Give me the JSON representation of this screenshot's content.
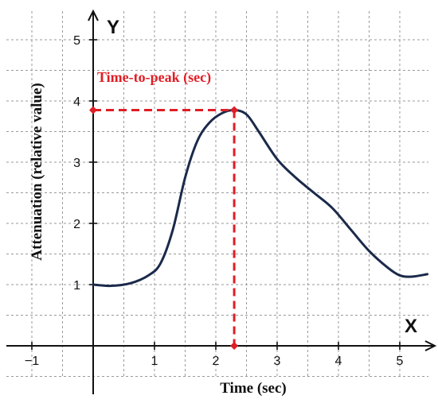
{
  "chart_data": {
    "type": "line",
    "xlabel": "Time (sec)",
    "ylabel": "Attenuation (relative value)",
    "x_axis_letter": "X",
    "y_axis_letter": "Y",
    "xlim": [
      -1.5,
      5.5
    ],
    "ylim": [
      -0.8,
      5.5
    ],
    "x_ticks": [
      -1,
      1,
      2,
      3,
      4,
      5
    ],
    "y_ticks": [
      1,
      2,
      3,
      4,
      5
    ],
    "grid": true,
    "grid_step": 0.5,
    "series": [
      {
        "color": "#1b2a4a",
        "x": [
          0,
          0.3,
          0.6,
          0.9,
          1.1,
          1.3,
          1.5,
          1.7,
          1.9,
          2.1,
          2.3,
          2.5,
          2.7,
          3.0,
          3.3,
          3.6,
          3.9,
          4.2,
          4.5,
          4.8,
          5.0,
          5.2,
          5.45
        ],
        "y": [
          1.0,
          0.98,
          1.02,
          1.15,
          1.35,
          1.9,
          2.75,
          3.35,
          3.65,
          3.8,
          3.85,
          3.78,
          3.5,
          3.05,
          2.75,
          2.5,
          2.25,
          1.9,
          1.55,
          1.28,
          1.15,
          1.13,
          1.17
        ]
      }
    ],
    "annotation": {
      "text": "Time-to-peak (sec)",
      "color": "#e01e25",
      "peak_x": 2.3,
      "peak_y": 3.85
    }
  }
}
